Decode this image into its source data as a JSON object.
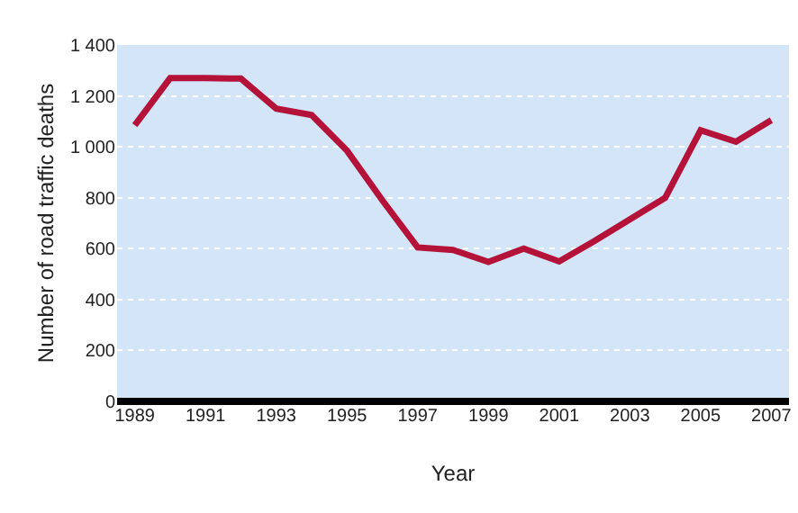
{
  "chart_data": {
    "type": "line",
    "xlabel": "Year",
    "ylabel": "Number of road traffic deaths",
    "x": [
      1989,
      1990,
      1991,
      1992,
      1993,
      1994,
      1995,
      1996,
      1997,
      1998,
      1999,
      2000,
      2001,
      2002,
      2003,
      2004,
      2005,
      2006,
      2007
    ],
    "series": [
      {
        "color": "#b5123a",
        "values": [
          1085,
          1270,
          1270,
          1268,
          1150,
          1125,
          985,
          790,
          605,
          595,
          548,
          600,
          550,
          630,
          715,
          800,
          1065,
          1020,
          1105
        ]
      }
    ],
    "xlim": [
      1988.5,
      2007.5
    ],
    "xticks": [
      1989,
      1991,
      1993,
      1995,
      1997,
      1999,
      2001,
      2003,
      2005,
      2007
    ],
    "ylim": [
      0,
      1400
    ],
    "yticks": [
      {
        "value": 0,
        "label": "0"
      },
      {
        "value": 200,
        "label": "200"
      },
      {
        "value": 400,
        "label": "400"
      },
      {
        "value": 600,
        "label": "600"
      },
      {
        "value": 800,
        "label": "800"
      },
      {
        "value": 1000,
        "label": "1 000"
      },
      {
        "value": 1200,
        "label": "1 200"
      },
      {
        "value": 1400,
        "label": "1 400"
      }
    ],
    "grid": "y",
    "marker": "none",
    "line_style": "solid"
  }
}
